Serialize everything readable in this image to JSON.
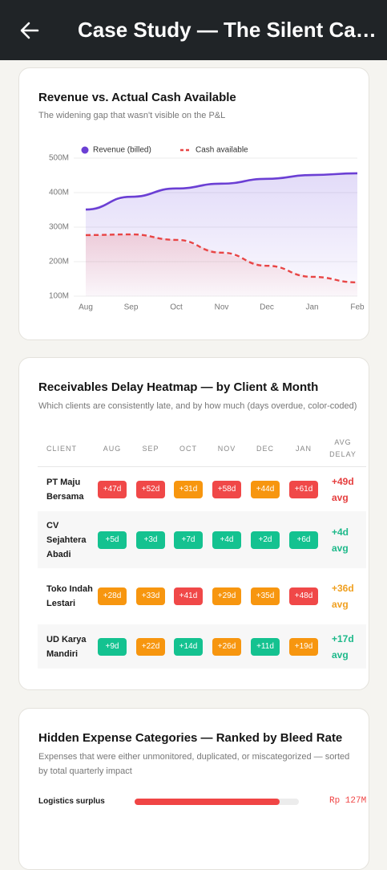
{
  "header": {
    "title": "Case Study — The Silent Ca…"
  },
  "chart_data": {
    "type": "line",
    "title": "Revenue vs. Actual Cash Available",
    "subtitle": "The widening gap that wasn't visible on the P&L",
    "categories": [
      "Aug",
      "Sep",
      "Oct",
      "Nov",
      "Dec",
      "Jan",
      "Feb"
    ],
    "series": [
      {
        "name": "Revenue (billed)",
        "color": "#6b3fd4",
        "dashed": false,
        "values": [
          351,
          388,
          412,
          426,
          440,
          451,
          456
        ]
      },
      {
        "name": "Cash available",
        "color": "#e84545",
        "dashed": true,
        "values": [
          277,
          279,
          263,
          226,
          188,
          156,
          140
        ]
      }
    ],
    "ylim": [
      100,
      500
    ],
    "yticks": [
      {
        "value": 100,
        "label": "100M"
      },
      {
        "value": 200,
        "label": "200M"
      },
      {
        "value": 300,
        "label": "300M"
      },
      {
        "value": 400,
        "label": "400M"
      },
      {
        "value": 500,
        "label": "500M"
      }
    ],
    "grid": true,
    "legend": "top"
  },
  "heatmap": {
    "title": "Receivables Delay Heatmap — by Client & Month",
    "subtitle": "Which clients are consistently late, and by how much (days overdue, color-coded)",
    "columns": [
      "CLIENT",
      "AUG",
      "SEP",
      "OCT",
      "NOV",
      "DEC",
      "JAN",
      "AVG DELAY"
    ],
    "rows": [
      {
        "client": "PT Maju Bersama",
        "cells": [
          {
            "text": "+47d",
            "color": "#f04848"
          },
          {
            "text": "+52d",
            "color": "#f04848"
          },
          {
            "text": "+31d",
            "color": "#f7960f"
          },
          {
            "text": "+58d",
            "color": "#f04848"
          },
          {
            "text": "+44d",
            "color": "#f7960f"
          },
          {
            "text": "+61d",
            "color": "#f04848"
          }
        ],
        "avg": "+49d avg",
        "avg_color": "#e53e3e"
      },
      {
        "client": "CV Sejahtera Abadi",
        "cells": [
          {
            "text": "+5d",
            "color": "#14c290"
          },
          {
            "text": "+3d",
            "color": "#14c290"
          },
          {
            "text": "+7d",
            "color": "#14c290"
          },
          {
            "text": "+4d",
            "color": "#14c290"
          },
          {
            "text": "+2d",
            "color": "#14c290"
          },
          {
            "text": "+6d",
            "color": "#14c290"
          }
        ],
        "avg": "+4d avg",
        "avg_color": "#1db98a"
      },
      {
        "client": "Toko Indah Lestari",
        "cells": [
          {
            "text": "+28d",
            "color": "#f7960f"
          },
          {
            "text": "+33d",
            "color": "#f7960f"
          },
          {
            "text": "+41d",
            "color": "#f04848"
          },
          {
            "text": "+29d",
            "color": "#f7960f"
          },
          {
            "text": "+35d",
            "color": "#f7960f"
          },
          {
            "text": "+48d",
            "color": "#f04848"
          }
        ],
        "avg": "+36d avg",
        "avg_color": "#f0a020"
      },
      {
        "client": "UD Karya Mandiri",
        "cells": [
          {
            "text": "+9d",
            "color": "#14c290"
          },
          {
            "text": "+22d",
            "color": "#f7960f"
          },
          {
            "text": "+14d",
            "color": "#14c290"
          },
          {
            "text": "+26d",
            "color": "#f7960f"
          },
          {
            "text": "+11d",
            "color": "#14c290"
          },
          {
            "text": "+19d",
            "color": "#f7960f"
          }
        ],
        "avg": "+17d avg",
        "avg_color": "#1db98a"
      }
    ]
  },
  "expenses": {
    "title": "Hidden Expense Categories — Ranked by Bleed Rate",
    "subtitle": "Expenses that were either unmonitored, duplicated, or miscategorized — sorted by total quarterly impact",
    "xlim": [
      0,
      144
    ],
    "items": [
      {
        "label": "Logistics surplus",
        "value": 127,
        "value_label": "Rp 127M",
        "color": "#f04545"
      }
    ]
  }
}
